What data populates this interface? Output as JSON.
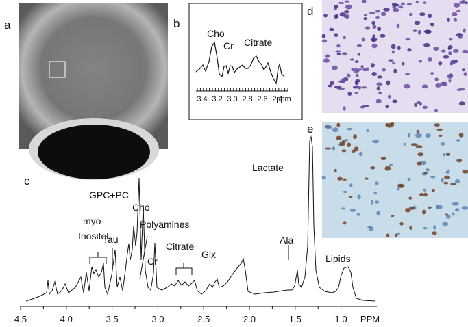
{
  "panels": {
    "a": {
      "label": "a"
    },
    "b": {
      "label": "b",
      "peaks": [
        "Cho",
        "Cr",
        "Citrate"
      ],
      "axis_ticks": [
        "3.4",
        "3.2",
        "3.0",
        "2.8",
        "2.6",
        "2.4"
      ],
      "axis_unit": "ppm"
    },
    "c": {
      "label": "c",
      "peaks": {
        "gpc": "GPC+PC",
        "cho": "Cho",
        "myo": [
          "myo-",
          "Inositol"
        ],
        "tau": "Tau",
        "polyamines": "Polyamines",
        "cr": "Cr",
        "citrate": "Citrate",
        "glx": "Glx",
        "ala": "Ala",
        "lactate": "Lactate",
        "lipids": "Lipids"
      },
      "axis_ticks": [
        "4.5",
        "4.0",
        "3.5",
        "3.0",
        "2.5",
        "2.0",
        "1.5",
        "1.0"
      ],
      "axis_unit": "PPM"
    },
    "d": {
      "label": "d"
    },
    "e": {
      "label": "e"
    }
  }
}
